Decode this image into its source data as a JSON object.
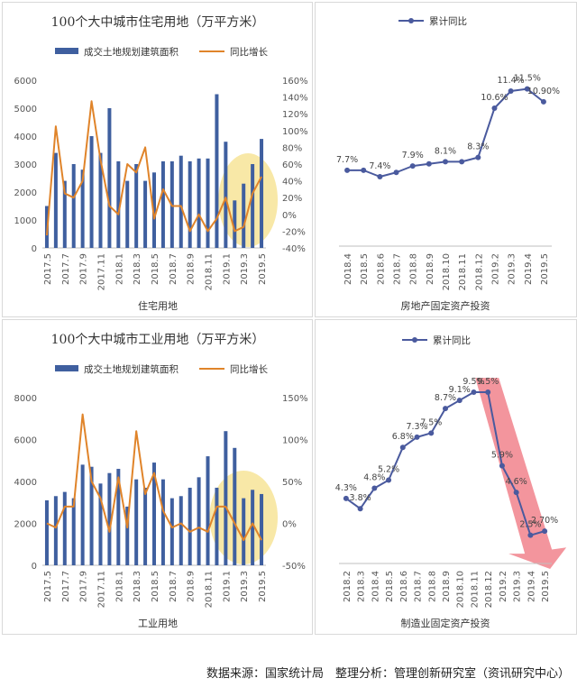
{
  "source_text": "数据来源：国家统计局　整理分析：管理创新研究室（资讯研究中心）",
  "colors": {
    "bar": "#3f5f9f",
    "growth_line": "#e0842a",
    "cumulative_line": "#4a5a9e",
    "highlight": "#f6e08a",
    "arrow": "#f07a85"
  },
  "chart_data": [
    {
      "type": "bar",
      "title": "100个大中城市住宅用地（万平方米）",
      "xlabel": "住宅用地",
      "legend": [
        "成交土地规划建筑面积",
        "同比增长"
      ],
      "legend_position": "top",
      "categories": [
        "2017.5",
        "2017.6",
        "2017.7",
        "2017.8",
        "2017.9",
        "2017.10",
        "2017.11",
        "2017.12",
        "2018.1",
        "2018.2",
        "2018.3",
        "2018.4",
        "2018.5",
        "2018.6",
        "2018.7",
        "2018.8",
        "2018.9",
        "2018.10",
        "2018.11",
        "2018.12",
        "2019.1",
        "2019.2",
        "2019.3",
        "2019.4",
        "2019.5"
      ],
      "tick_labels": [
        "2017.5",
        "2017.7",
        "2017.9",
        "2017.11",
        "2018.1",
        "2018.3",
        "2018.5",
        "2018.7",
        "2018.9",
        "2018.11",
        "2019.1",
        "2019.3",
        "2019.5"
      ],
      "ylim": [
        0,
        6000
      ],
      "y_ticks": [
        "0",
        "1000",
        "2000",
        "3000",
        "4000",
        "5000",
        "6000"
      ],
      "y2lim": [
        -40,
        160
      ],
      "y2_ticks": [
        "-40%",
        "-20%",
        "0%",
        "20%",
        "40%",
        "60%",
        "80%",
        "100%",
        "120%",
        "140%",
        "160%"
      ],
      "series": [
        {
          "name": "成交土地规划建筑面积",
          "type": "bar",
          "values": [
            1500,
            3400,
            2400,
            3000,
            2800,
            4000,
            3400,
            5000,
            3100,
            2400,
            3000,
            2400,
            2700,
            3100,
            3100,
            3300,
            3100,
            3200,
            3200,
            5500,
            3800,
            1700,
            2300,
            3000,
            3900
          ]
        },
        {
          "name": "同比增长",
          "type": "line",
          "axis": "right",
          "values": [
            -25,
            105,
            25,
            20,
            40,
            135,
            65,
            10,
            0,
            60,
            50,
            80,
            -5,
            30,
            10,
            10,
            -20,
            0,
            -20,
            -5,
            20,
            -20,
            -15,
            25,
            45
          ]
        }
      ],
      "highlight_range": [
        "2019.2",
        "2019.5"
      ]
    },
    {
      "type": "line",
      "title": "累计同比",
      "xlabel": "房地产固定资产投资",
      "categories": [
        "2018.4",
        "2018.5",
        "2018.6",
        "2018.7",
        "2018.8",
        "2018.9",
        "2018.10",
        "2018.11",
        "2018.12",
        "2019.2",
        "2019.3",
        "2019.4",
        "2019.5"
      ],
      "ylim": [
        5,
        13
      ],
      "series": [
        {
          "name": "累计同比",
          "values": [
            7.7,
            7.7,
            7.4,
            7.6,
            7.9,
            8.0,
            8.1,
            8.1,
            8.3,
            10.6,
            11.4,
            11.5,
            10.9
          ],
          "data_labels": [
            "7.7%",
            "",
            "7.4%",
            "",
            "7.9%",
            "",
            "8.1%",
            "",
            "8.3%",
            "10.6%",
            "11.4%",
            "11.5%",
            "10.90%"
          ]
        }
      ]
    },
    {
      "type": "bar",
      "title": "100个大中城市工业用地（万平方米）",
      "xlabel": "工业用地",
      "legend": [
        "成交土地规划建筑面积",
        "同比增长"
      ],
      "legend_position": "top",
      "categories": [
        "2017.5",
        "2017.6",
        "2017.7",
        "2017.8",
        "2017.9",
        "2017.10",
        "2017.11",
        "2017.12",
        "2018.1",
        "2018.2",
        "2018.3",
        "2018.4",
        "2018.5",
        "2018.6",
        "2018.7",
        "2018.8",
        "2018.9",
        "2018.10",
        "2018.11",
        "2018.12",
        "2019.1",
        "2019.2",
        "2019.3",
        "2019.4",
        "2019.5"
      ],
      "tick_labels": [
        "2017.5",
        "2017.7",
        "2017.9",
        "2017.11",
        "2018.1",
        "2018.3",
        "2018.5",
        "2018.7",
        "2018.9",
        "2018.11",
        "2019.1",
        "2019.3",
        "2019.5"
      ],
      "ylim": [
        0,
        8000
      ],
      "y_ticks": [
        "0",
        "2000",
        "4000",
        "6000",
        "8000"
      ],
      "y2lim": [
        -50,
        150
      ],
      "y2_ticks": [
        "-50%",
        "0%",
        "50%",
        "100%",
        "150%"
      ],
      "series": [
        {
          "name": "成交土地规划建筑面积",
          "type": "bar",
          "values": [
            3100,
            3300,
            3500,
            3200,
            4800,
            4700,
            3900,
            4400,
            4600,
            2800,
            4100,
            3700,
            4900,
            4100,
            3200,
            3300,
            3700,
            4200,
            5200,
            3700,
            6400,
            5600,
            3200,
            3600,
            3400
          ]
        },
        {
          "name": "同比增长",
          "type": "line",
          "axis": "right",
          "values": [
            0,
            -5,
            20,
            20,
            130,
            50,
            30,
            -10,
            55,
            -5,
            110,
            35,
            60,
            15,
            -5,
            0,
            -10,
            -5,
            -10,
            20,
            20,
            0,
            -20,
            0,
            -20
          ]
        }
      ],
      "highlight_range": [
        "2019.1",
        "2019.5"
      ]
    },
    {
      "type": "line",
      "title": "累计同比",
      "xlabel": "制造业固定资产投资",
      "categories": [
        "2018.2",
        "2018.3",
        "2018.4",
        "2018.5",
        "2018.6",
        "2018.7",
        "2018.8",
        "2018.9",
        "2018.10",
        "2018.11",
        "2018.12",
        "2019.2",
        "2019.3",
        "2019.4",
        "2019.5"
      ],
      "ylim": [
        2,
        11
      ],
      "series": [
        {
          "name": "累计同比",
          "values": [
            4.3,
            3.8,
            4.8,
            5.2,
            6.8,
            7.3,
            7.5,
            8.7,
            9.1,
            9.5,
            9.5,
            5.9,
            4.6,
            2.5,
            2.7
          ],
          "data_labels": [
            "4.3%",
            "3.8%",
            "4.8%",
            "5.2%",
            "6.8%",
            "7.3%",
            "7.5%",
            "8.7%",
            "9.1%",
            "9.5%",
            "9.5%",
            "5.9%",
            "4.6%",
            "2.5%",
            "2.70%"
          ]
        }
      ],
      "trend_arrow": true
    }
  ]
}
